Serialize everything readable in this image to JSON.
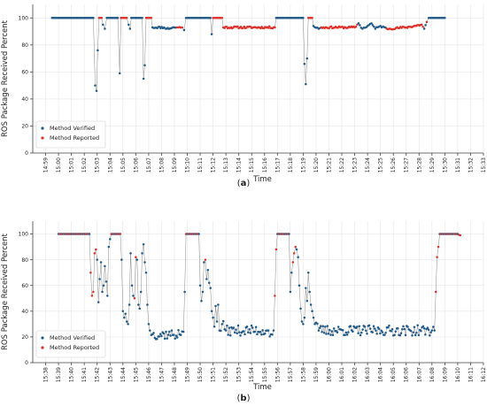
{
  "chart_data": [
    {
      "type": "scatter",
      "panel_label": "a",
      "xlabel": "Time",
      "ylabel": "ROS Package Received Percent",
      "xlim": [
        -1,
        34
      ],
      "ylim": [
        0,
        110
      ],
      "x_ticks": [
        "14:59",
        "15:00",
        "15:01",
        "15:02",
        "15:03",
        "15:04",
        "15:05",
        "15:06",
        "15:07",
        "15:08",
        "15:09",
        "15:10",
        "15:11",
        "15:12",
        "15:13",
        "15:14",
        "15:15",
        "15:16",
        "15:17",
        "15:18",
        "15:19",
        "15:20",
        "15:21",
        "15:22",
        "15:23",
        "15:24",
        "15:25",
        "15:26",
        "15:27",
        "15:28",
        "15:29",
        "15:30",
        "15:31",
        "15:32",
        "15:33"
      ],
      "y_ticks": [
        0,
        20,
        40,
        60,
        80,
        100
      ],
      "grid": true,
      "legend_position": "lower-left",
      "series": [
        {
          "name": "Method Verified",
          "color": "#1f5a8a"
        },
        {
          "name": "Method Reported",
          "color": "#e0302a"
        }
      ],
      "profile": [
        [
          0.5,
          100,
          "v"
        ],
        [
          3.7,
          100,
          "v"
        ],
        [
          3.85,
          50,
          "v"
        ],
        [
          3.95,
          46,
          "v"
        ],
        [
          4.05,
          76,
          "v"
        ],
        [
          4.15,
          100,
          "r"
        ],
        [
          4.35,
          100,
          "r"
        ],
        [
          4.45,
          95,
          "v"
        ],
        [
          4.6,
          92,
          "v"
        ],
        [
          4.75,
          100,
          "v"
        ],
        [
          5.6,
          100,
          "v"
        ],
        [
          5.75,
          59,
          "v"
        ],
        [
          5.85,
          100,
          "r"
        ],
        [
          6.3,
          100,
          "r"
        ],
        [
          6.45,
          95,
          "v"
        ],
        [
          6.55,
          92,
          "v"
        ],
        [
          6.65,
          100,
          "v"
        ],
        [
          7.5,
          100,
          "v"
        ],
        [
          7.6,
          55,
          "v"
        ],
        [
          7.7,
          65,
          "v"
        ],
        [
          7.8,
          100,
          "r"
        ],
        [
          8.2,
          100,
          "r"
        ],
        [
          8.3,
          93,
          "v"
        ],
        [
          9.2,
          93,
          "v"
        ],
        [
          9.4,
          92,
          "v"
        ],
        [
          10.0,
          93,
          "v"
        ],
        [
          10.2,
          93,
          "r"
        ],
        [
          10.6,
          93,
          "r"
        ],
        [
          10.75,
          91,
          "v"
        ],
        [
          10.9,
          100,
          "v"
        ],
        [
          12.8,
          100,
          "v"
        ],
        [
          12.9,
          88,
          "v"
        ],
        [
          13.0,
          100,
          "r"
        ],
        [
          13.7,
          100,
          "r"
        ],
        [
          13.8,
          93,
          "r"
        ],
        [
          17.8,
          93,
          "r"
        ],
        [
          17.9,
          100,
          "v"
        ],
        [
          20.0,
          100,
          "v"
        ],
        [
          20.1,
          66,
          "v"
        ],
        [
          20.2,
          51,
          "v"
        ],
        [
          20.3,
          70,
          "v"
        ],
        [
          20.4,
          100,
          "r"
        ],
        [
          20.7,
          100,
          "r"
        ],
        [
          20.8,
          94,
          "v"
        ],
        [
          21.2,
          92,
          "v"
        ],
        [
          21.4,
          93,
          "r"
        ],
        [
          24.0,
          93,
          "r"
        ],
        [
          24.3,
          96,
          "v"
        ],
        [
          24.6,
          92,
          "v"
        ],
        [
          25.0,
          94,
          "v"
        ],
        [
          25.3,
          96,
          "v"
        ],
        [
          25.6,
          92,
          "v"
        ],
        [
          26.0,
          94,
          "v"
        ],
        [
          26.5,
          92,
          "r"
        ],
        [
          28.0,
          93,
          "r"
        ],
        [
          29.2,
          95,
          "r"
        ],
        [
          29.4,
          92,
          "v"
        ],
        [
          29.6,
          97,
          "r"
        ],
        [
          29.75,
          100,
          "v"
        ],
        [
          31.0,
          100,
          "v"
        ]
      ]
    },
    {
      "type": "scatter",
      "panel_label": "b",
      "xlabel": "Time",
      "ylabel": "ROS Package Received Percent",
      "xlim": [
        -1,
        34
      ],
      "ylim": [
        0,
        110
      ],
      "x_ticks": [
        "15:38",
        "15:39",
        "15:40",
        "15:41",
        "15:42",
        "15:43",
        "15:44",
        "15:45",
        "15:46",
        "15:47",
        "15:48",
        "15:49",
        "15:50",
        "15:51",
        "15:52",
        "15:53",
        "15:54",
        "15:55",
        "15:56",
        "15:57",
        "15:58",
        "15:59",
        "16:00",
        "16:01",
        "16:02",
        "16:03",
        "16:04",
        "16:05",
        "16:06",
        "16:07",
        "16:08",
        "16:09",
        "16:10",
        "16:11",
        "16:12"
      ],
      "y_ticks": [
        0,
        20,
        40,
        60,
        80,
        100
      ],
      "grid": true,
      "legend_position": "lower-left",
      "series": [
        {
          "name": "Method Verified",
          "color": "#1f5a8a"
        },
        {
          "name": "Method Reported",
          "color": "#e0302a"
        }
      ],
      "profile": [
        [
          1.0,
          100,
          "m"
        ],
        [
          3.4,
          100,
          "m"
        ],
        [
          3.5,
          70,
          "r"
        ],
        [
          3.6,
          52,
          "r"
        ],
        [
          3.7,
          55,
          "r"
        ],
        [
          3.8,
          85,
          "r"
        ],
        [
          3.9,
          88,
          "r"
        ],
        [
          4.0,
          80,
          "v"
        ],
        [
          4.1,
          47,
          "v"
        ],
        [
          4.2,
          65,
          "v"
        ],
        [
          4.3,
          78,
          "v"
        ],
        [
          4.4,
          55,
          "v"
        ],
        [
          4.5,
          60,
          "v"
        ],
        [
          4.6,
          75,
          "v"
        ],
        [
          4.7,
          63,
          "v"
        ],
        [
          4.8,
          52,
          "v"
        ],
        [
          4.9,
          90,
          "v"
        ],
        [
          5.0,
          96,
          "v"
        ],
        [
          5.1,
          100,
          "m"
        ],
        [
          5.8,
          100,
          "m"
        ],
        [
          5.9,
          80,
          "v"
        ],
        [
          6.0,
          40,
          "v"
        ],
        [
          6.1,
          35,
          "v"
        ],
        [
          6.2,
          38,
          "v"
        ],
        [
          6.3,
          32,
          "v"
        ],
        [
          6.4,
          30,
          "v"
        ],
        [
          6.5,
          45,
          "v"
        ],
        [
          6.6,
          85,
          "v"
        ],
        [
          6.7,
          60,
          "v"
        ],
        [
          6.8,
          52,
          "v"
        ],
        [
          6.9,
          50,
          "r"
        ],
        [
          7.0,
          82,
          "r"
        ],
        [
          7.1,
          80,
          "v"
        ],
        [
          7.2,
          45,
          "v"
        ],
        [
          7.3,
          42,
          "v"
        ],
        [
          7.4,
          55,
          "v"
        ],
        [
          7.5,
          85,
          "v"
        ],
        [
          7.6,
          92,
          "v"
        ],
        [
          7.7,
          78,
          "v"
        ],
        [
          7.8,
          70,
          "v"
        ],
        [
          7.9,
          45,
          "v"
        ],
        [
          8.0,
          30,
          "v"
        ],
        [
          8.1,
          25,
          "v"
        ],
        [
          8.3,
          22,
          "v"
        ],
        [
          10.4,
          22,
          "v"
        ],
        [
          10.7,
          24,
          "v"
        ],
        [
          10.8,
          55,
          "v"
        ],
        [
          10.9,
          100,
          "m"
        ],
        [
          11.9,
          100,
          "m"
        ],
        [
          12.0,
          60,
          "v"
        ],
        [
          12.1,
          48,
          "v"
        ],
        [
          12.2,
          55,
          "v"
        ],
        [
          12.3,
          78,
          "v"
        ],
        [
          12.4,
          80,
          "r"
        ],
        [
          12.5,
          65,
          "v"
        ],
        [
          12.6,
          72,
          "v"
        ],
        [
          12.7,
          62,
          "v"
        ],
        [
          12.8,
          58,
          "v"
        ],
        [
          12.9,
          40,
          "v"
        ],
        [
          13.0,
          35,
          "v"
        ],
        [
          13.1,
          28,
          "v"
        ],
        [
          13.2,
          44,
          "v"
        ],
        [
          13.3,
          32,
          "v"
        ],
        [
          13.4,
          45,
          "v"
        ],
        [
          13.5,
          25,
          "v"
        ],
        [
          13.7,
          30,
          "v"
        ],
        [
          14.0,
          25,
          "v"
        ],
        [
          17.2,
          25,
          "v"
        ],
        [
          17.5,
          22,
          "v"
        ],
        [
          17.7,
          25,
          "v"
        ],
        [
          17.8,
          52,
          "r"
        ],
        [
          17.9,
          88,
          "r"
        ],
        [
          18.0,
          100,
          "m"
        ],
        [
          18.9,
          100,
          "m"
        ],
        [
          19.0,
          55,
          "v"
        ],
        [
          19.1,
          70,
          "v"
        ],
        [
          19.2,
          78,
          "r"
        ],
        [
          19.3,
          85,
          "r"
        ],
        [
          19.4,
          90,
          "r"
        ],
        [
          19.5,
          88,
          "v"
        ],
        [
          19.6,
          82,
          "v"
        ],
        [
          19.7,
          60,
          "v"
        ],
        [
          19.8,
          42,
          "v"
        ],
        [
          19.9,
          32,
          "v"
        ],
        [
          20.0,
          30,
          "v"
        ],
        [
          20.1,
          35,
          "v"
        ],
        [
          20.2,
          58,
          "v"
        ],
        [
          20.3,
          48,
          "v"
        ],
        [
          20.4,
          70,
          "v"
        ],
        [
          20.5,
          55,
          "v"
        ],
        [
          20.6,
          45,
          "v"
        ],
        [
          20.7,
          40,
          "v"
        ],
        [
          20.8,
          35,
          "v"
        ],
        [
          20.9,
          30,
          "v"
        ],
        [
          21.2,
          25,
          "v"
        ],
        [
          30.0,
          25,
          "v"
        ],
        [
          30.2,
          25,
          "v"
        ],
        [
          30.3,
          55,
          "r"
        ],
        [
          30.4,
          82,
          "r"
        ],
        [
          30.5,
          90,
          "r"
        ],
        [
          30.6,
          100,
          "m"
        ],
        [
          32.0,
          100,
          "m"
        ],
        [
          32.2,
          99,
          "r"
        ]
      ]
    }
  ]
}
